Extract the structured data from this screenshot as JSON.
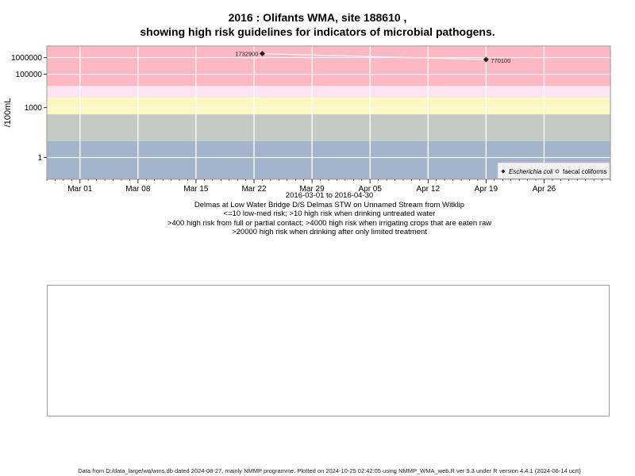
{
  "title_line1": "2016 : Olifants WMA, site 188610 ,",
  "title_line2": "showing high risk guidelines for indicators of microbial pathogens.",
  "chart_data": {
    "type": "scatter",
    "title": "2016 : Olifants WMA, site 188610 , showing high risk guidelines for indicators of microbial pathogens.",
    "xlabel": "2016-03-01 to 2016-04-30",
    "ylabel": "/100mL",
    "yscale": "log",
    "xlim": [
      "2016-02-26",
      "2016-05-04"
    ],
    "ylim": [
      0.05,
      5000000
    ],
    "x_ticks": [
      {
        "date": "2016-03-01",
        "label": "Mar 01"
      },
      {
        "date": "2016-03-08",
        "label": "Mar 08"
      },
      {
        "date": "2016-03-15",
        "label": "Mar 15"
      },
      {
        "date": "2016-03-22",
        "label": "Mar 22"
      },
      {
        "date": "2016-03-29",
        "label": "Mar 29"
      },
      {
        "date": "2016-04-05",
        "label": "Apr 05"
      },
      {
        "date": "2016-04-12",
        "label": "Apr 12"
      },
      {
        "date": "2016-04-19",
        "label": "Apr 19"
      },
      {
        "date": "2016-04-26",
        "label": "Apr 26"
      }
    ],
    "y_ticks": [
      {
        "value": 1,
        "label": "1"
      },
      {
        "value": 1000,
        "label": "1000"
      },
      {
        "value": 100000,
        "label": "100000"
      },
      {
        "value": 1000000,
        "label": "1000000"
      }
    ],
    "grid": true,
    "bands": [
      {
        "from": 0.05,
        "to": 10,
        "color": "#a4b4cc"
      },
      {
        "from": 10,
        "to": 400,
        "color": "#c2ccc0"
      },
      {
        "from": 400,
        "to": 4000,
        "color": "#fdf7c0"
      },
      {
        "from": 4000,
        "to": 20000,
        "color": "#fde4ee"
      },
      {
        "from": 20000,
        "to": 5000000,
        "color": "#fdb8c4"
      }
    ],
    "series": [
      {
        "name": "Escherichia coli",
        "marker": "diamond",
        "color": "#222222",
        "points": [
          {
            "x": "2016-03-23",
            "y": 1732900,
            "label": "1732900"
          },
          {
            "x": "2016-04-19",
            "y": 770100,
            "label": "770100"
          }
        ]
      },
      {
        "name": "faecal coliforms",
        "marker": "circle",
        "color": "#222222",
        "points": []
      }
    ],
    "legend_placement": "bottom-right"
  },
  "notes": [
    "Delmas at Low Water Bridge D/S Delmas STW on Unnamed Stream from Witklip",
    "<=10 low-med risk; >10 high risk when drinking untreated water",
    ">400 high risk from full or partial contact; >4000 high risk when irrigating crops that are eaten raw",
    ">20000 high risk when drinking after only limited treatment"
  ],
  "footer": "Data from D:/data_large/wq/wms.db dated 2024-08-27, mainly NMMP programme. Plotted on 2024-10-25 02:42:05 using NMMP_WMA_web.R ver 9.3 under R version 4.4.1 (2024-06-14 ucrt)"
}
